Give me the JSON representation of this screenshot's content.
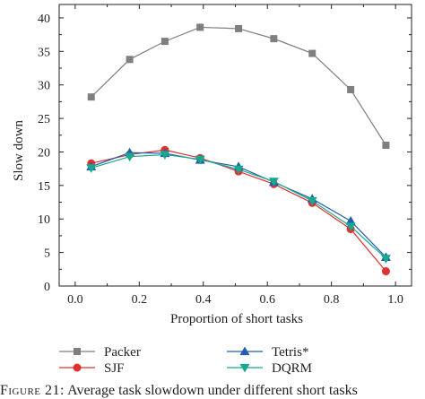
{
  "chart_data": {
    "type": "line",
    "title": "",
    "xlabel": "Proportion of short tasks",
    "ylabel": "Slow down",
    "xlim": [
      -0.05,
      1.05
    ],
    "ylim": [
      0,
      42
    ],
    "xticks": [
      "0.0",
      "0.2",
      "0.4",
      "0.6",
      "0.8",
      "1.0"
    ],
    "yticks": [
      "0",
      "5",
      "10",
      "15",
      "20",
      "25",
      "30",
      "35",
      "40"
    ],
    "legend_position": "bottom",
    "grid": false,
    "series": [
      {
        "name": "Packer",
        "marker": "square",
        "color": "#7f7f7f",
        "x": [
          0.05,
          0.17,
          0.28,
          0.39,
          0.51,
          0.62,
          0.74,
          0.86,
          0.97
        ],
        "y": [
          28.2,
          33.8,
          36.5,
          38.6,
          38.4,
          36.9,
          34.7,
          29.3,
          21.0
        ]
      },
      {
        "name": "SJF",
        "marker": "circle",
        "color": "#e0302f",
        "x": [
          0.05,
          0.17,
          0.28,
          0.39,
          0.51,
          0.62,
          0.74,
          0.86,
          0.97
        ],
        "y": [
          18.3,
          19.6,
          20.3,
          19.1,
          17.1,
          15.2,
          12.4,
          8.5,
          2.2
        ]
      },
      {
        "name": "Tetris*",
        "marker": "triangle-up",
        "color": "#1f5fae",
        "x": [
          0.05,
          0.17,
          0.28,
          0.39,
          0.51,
          0.62,
          0.74,
          0.86,
          0.97
        ],
        "y": [
          17.8,
          19.9,
          19.8,
          18.8,
          17.8,
          15.5,
          13.0,
          9.7,
          4.3
        ]
      },
      {
        "name": "DQRM",
        "marker": "triangle-down",
        "color": "#19a88e",
        "x": [
          0.05,
          0.17,
          0.28,
          0.39,
          0.51,
          0.62,
          0.74,
          0.86,
          0.97
        ],
        "y": [
          17.6,
          19.3,
          19.6,
          18.9,
          17.4,
          15.6,
          12.7,
          8.9,
          4.1
        ]
      }
    ]
  },
  "caption": {
    "prefix": "Figure 21:",
    "text": " Average task slowdown under different short tasks"
  }
}
